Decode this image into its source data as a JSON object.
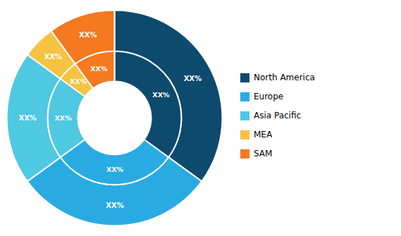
{
  "chart_data": {
    "type": "donut",
    "categories": [
      "North America",
      "Europe",
      "Asia Pacific",
      "MEA",
      "SAM"
    ],
    "series": [
      {
        "values": [
          35,
          30,
          20,
          5,
          10
        ],
        "value_labels": [
          "XX%",
          "XX%",
          "XX%",
          "XX%",
          "XX%"
        ],
        "colors": [
          "#0d4a6e",
          "#29abe2",
          "#4ec9e1",
          "#f5c242",
          "#f47920"
        ]
      },
      {
        "values": [
          35,
          30,
          20,
          5,
          10
        ],
        "value_labels": [
          "XX%",
          "XX%",
          "XX%",
          "XX%",
          "XX%"
        ],
        "colors": [
          "#0d4a6e",
          "#29abe2",
          "#4ec9e1",
          "#f5c242",
          "#f47920"
        ]
      }
    ],
    "data_labels": true,
    "legend": "right"
  }
}
